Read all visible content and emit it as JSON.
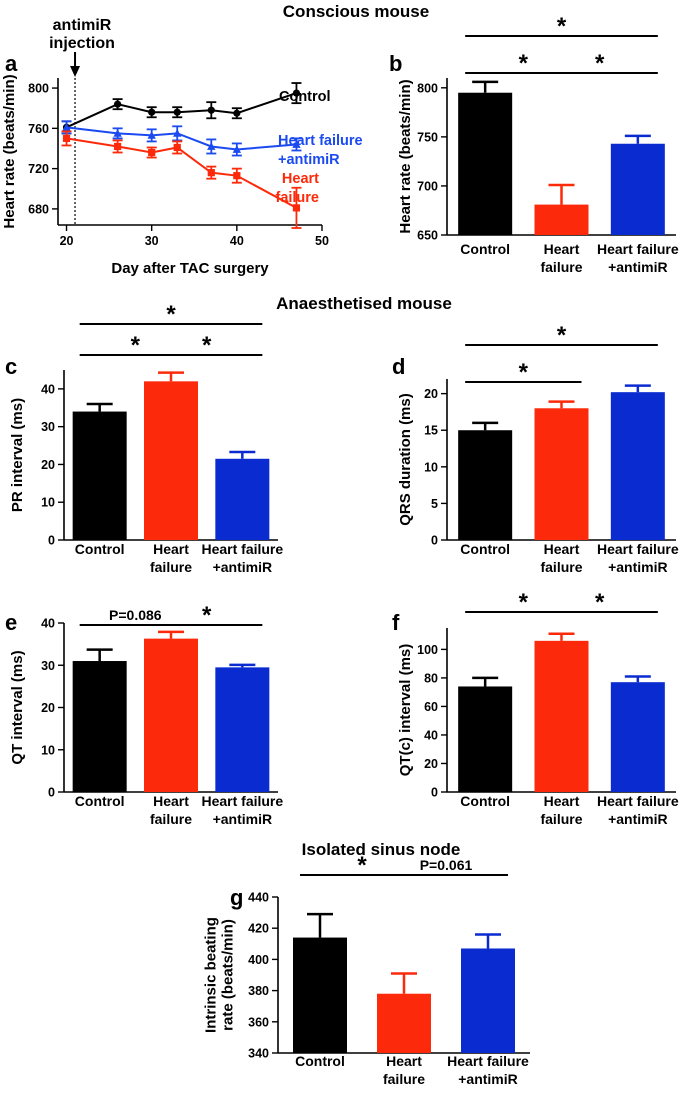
{
  "section_titles": {
    "conscious": "Conscious mouse",
    "anaesthetised": "Anaesthetised mouse",
    "isolated": "Isolated sinus node"
  },
  "colors": {
    "control": "#000000",
    "heart_failure": "#fc2a0a",
    "heart_failure_antimir": "#0a2bd0",
    "line_antimir": "#1a4af0"
  },
  "chart_data": [
    {
      "panel": "a",
      "type": "line",
      "annotation": "antimiR\ninjection",
      "xlabel": "Day after TAC surgery",
      "ylabel": "Heart rate (beats/min)",
      "xticks": [
        20,
        30,
        40,
        50
      ],
      "yticks": [
        680,
        720,
        760,
        800
      ],
      "xlim": [
        19,
        50
      ],
      "ylim": [
        664,
        810
      ],
      "injection_day": 21,
      "series": [
        {
          "name": "Control",
          "label_lines": [
            "Control"
          ],
          "color": "#000000",
          "marker": "circle",
          "x": [
            20,
            26,
            30,
            33,
            37,
            40,
            47
          ],
          "y": [
            761,
            784,
            776,
            776,
            778,
            775,
            795
          ],
          "err": [
            6,
            5,
            5,
            5,
            8,
            5,
            10
          ]
        },
        {
          "name": "Heart failure +antimiR",
          "label_lines": [
            "Heart failure",
            "+antimiR"
          ],
          "color": "#1a4af0",
          "marker": "triangle",
          "x": [
            20,
            26,
            30,
            33,
            37,
            40,
            47
          ],
          "y": [
            761,
            755,
            753,
            755,
            742,
            739,
            744
          ],
          "err": [
            6,
            5,
            6,
            7,
            7,
            6,
            6
          ]
        },
        {
          "name": "Heart failure",
          "label_lines": [
            "Heart",
            "failure"
          ],
          "color": "#fc2a0a",
          "marker": "square",
          "x": [
            20,
            26,
            30,
            33,
            37,
            40,
            47
          ],
          "y": [
            750,
            742,
            736,
            741,
            716,
            713,
            681
          ],
          "err": [
            7,
            6,
            5,
            6,
            6,
            7,
            20
          ]
        }
      ]
    },
    {
      "panel": "b",
      "type": "bar",
      "ylabel": "Heart rate (beats/min)",
      "categories": [
        "Control",
        "Heart failure",
        "Heart failure +antimiR"
      ],
      "category_lines": [
        [
          "Control"
        ],
        [
          "Heart",
          "failure"
        ],
        [
          "Heart failure",
          "+antimiR"
        ]
      ],
      "values": [
        795,
        681,
        743
      ],
      "errors": [
        11,
        20,
        8
      ],
      "ylim": [
        650,
        810
      ],
      "yticks": [
        650,
        700,
        750,
        800
      ],
      "significance": [
        {
          "from": 0,
          "to": 2,
          "label": "*",
          "level": 2
        },
        {
          "from": 0,
          "to": 1,
          "label": "*",
          "level": 1
        },
        {
          "from": 1,
          "to": 2,
          "label": "*",
          "level": 1
        }
      ]
    },
    {
      "panel": "c",
      "type": "bar",
      "ylabel": "PR interval (ms)",
      "categories": [
        "Control",
        "Heart failure",
        "Heart failure +antimiR"
      ],
      "category_lines": [
        [
          "Control"
        ],
        [
          "Heart",
          "failure"
        ],
        [
          "Heart failure",
          "+antimiR"
        ]
      ],
      "values": [
        34,
        42,
        21.5
      ],
      "errors": [
        2,
        2.3,
        1.8
      ],
      "ylim": [
        0,
        45
      ],
      "yticks": [
        0,
        10,
        20,
        30,
        40
      ],
      "significance": [
        {
          "from": 0,
          "to": 2,
          "label": "*",
          "level": 2
        },
        {
          "from": 0,
          "to": 1,
          "label": "*",
          "level": 1
        },
        {
          "from": 1,
          "to": 2,
          "label": "*",
          "level": 1
        }
      ]
    },
    {
      "panel": "d",
      "type": "bar",
      "ylabel": "QRS duration (ms)",
      "categories": [
        "Control",
        "Heart failure",
        "Heart failure +antimiR"
      ],
      "category_lines": [
        [
          "Control"
        ],
        [
          "Heart",
          "failure"
        ],
        [
          "Heart failure",
          "+antimiR"
        ]
      ],
      "values": [
        15,
        18,
        20.2
      ],
      "errors": [
        1,
        0.9,
        0.9
      ],
      "ylim": [
        0,
        22
      ],
      "yticks": [
        0,
        5,
        10,
        15,
        20
      ],
      "significance": [
        {
          "from": 0,
          "to": 2,
          "label": "*",
          "level": 2
        },
        {
          "from": 0,
          "to": 1,
          "label": "*",
          "level": 1
        }
      ]
    },
    {
      "panel": "e",
      "type": "bar",
      "ylabel": "QT interval (ms)",
      "categories": [
        "Control",
        "Heart failure",
        "Heart failure +antimiR"
      ],
      "category_lines": [
        [
          "Control"
        ],
        [
          "Heart",
          "failure"
        ],
        [
          "Heart failure",
          "+antimiR"
        ]
      ],
      "values": [
        31,
        36.3,
        29.5
      ],
      "errors": [
        2.7,
        1.6,
        0.6
      ],
      "ylim": [
        0,
        40
      ],
      "yticks": [
        0,
        10,
        20,
        30,
        40
      ],
      "significance": [
        {
          "from": 0,
          "to": 1,
          "label": "P=0.086",
          "level": 1
        },
        {
          "from": 1,
          "to": 2,
          "label": "*",
          "level": 1
        }
      ]
    },
    {
      "panel": "f",
      "type": "bar",
      "ylabel": "QT(c) interval (ms)",
      "categories": [
        "Control",
        "Heart failure",
        "Heart failure +antimiR"
      ],
      "category_lines": [
        [
          "Control"
        ],
        [
          "Heart",
          "failure"
        ],
        [
          "Heart failure",
          "+antimiR"
        ]
      ],
      "values": [
        74,
        106,
        77
      ],
      "errors": [
        6,
        5,
        4
      ],
      "ylim": [
        0,
        115
      ],
      "yticks": [
        0,
        20,
        40,
        60,
        80,
        100
      ],
      "significance": [
        {
          "from": 0,
          "to": 1,
          "label": "*",
          "level": 1
        },
        {
          "from": 1,
          "to": 2,
          "label": "*",
          "level": 1
        }
      ]
    },
    {
      "panel": "g",
      "type": "bar",
      "ylabel": "Intrinsic beating\nrate (beats/min)",
      "categories": [
        "Control",
        "Heart failure",
        "Heart failure +antimiR"
      ],
      "category_lines": [
        [
          "Control"
        ],
        [
          "Heart",
          "failure"
        ],
        [
          "Heart failure",
          "+antimiR"
        ]
      ],
      "values": [
        414,
        378,
        407
      ],
      "errors": [
        15,
        13,
        9
      ],
      "ylim": [
        340,
        440
      ],
      "yticks": [
        340,
        360,
        380,
        400,
        420,
        440
      ],
      "significance": [
        {
          "from": 0,
          "to": 1,
          "label": "*",
          "level": 1
        },
        {
          "from": 1,
          "to": 2,
          "label": "P=0.061",
          "level": 1
        }
      ]
    }
  ]
}
